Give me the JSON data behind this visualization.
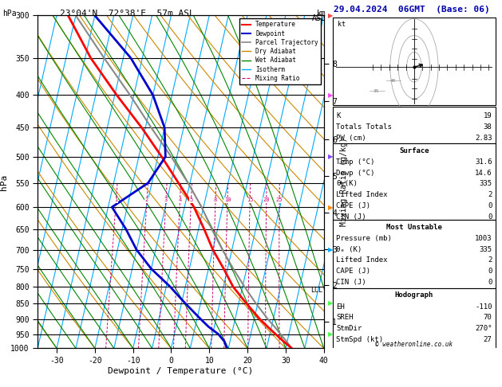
{
  "title_left": "23°04'N  72°38'E  57m ASL",
  "title_right": "29.04.2024  06GMT  (Base: 06)",
  "xlabel": "Dewpoint / Temperature (°C)",
  "ylabel_left": "hPa",
  "pressure_ticks": [
    300,
    350,
    400,
    450,
    500,
    550,
    600,
    650,
    700,
    750,
    800,
    850,
    900,
    950,
    1000
  ],
  "temp_min": -35,
  "temp_max": 40,
  "km_levels": [
    1,
    2,
    3,
    4,
    5,
    6,
    7,
    8
  ],
  "km_pressures": [
    908,
    795,
    698,
    612,
    536,
    469,
    409,
    357
  ],
  "lcl_pressure": 810,
  "temperature_profile": {
    "pressure": [
      1000,
      975,
      950,
      925,
      900,
      850,
      800,
      750,
      700,
      650,
      600,
      550,
      500,
      450,
      400,
      350,
      300
    ],
    "temp": [
      31.6,
      29.0,
      26.5,
      24.0,
      21.5,
      17.0,
      12.5,
      9.0,
      5.0,
      1.5,
      -2.5,
      -8.0,
      -14.0,
      -21.0,
      -29.5,
      -38.5,
      -47.0
    ]
  },
  "dewpoint_profile": {
    "pressure": [
      1000,
      975,
      950,
      925,
      900,
      850,
      800,
      750,
      700,
      650,
      600,
      550,
      500,
      450,
      400,
      350,
      300
    ],
    "temp": [
      14.6,
      13.5,
      11.5,
      8.5,
      6.0,
      1.0,
      -4.0,
      -10.0,
      -15.0,
      -19.0,
      -24.0,
      -16.0,
      -13.0,
      -15.0,
      -20.0,
      -28.0,
      -40.0
    ]
  },
  "parcel_trajectory": {
    "pressure": [
      1000,
      975,
      950,
      925,
      900,
      850,
      800,
      750,
      700,
      650,
      600,
      550,
      500,
      450,
      400,
      350,
      300
    ],
    "temp": [
      31.6,
      29.8,
      27.8,
      25.8,
      23.6,
      19.5,
      15.5,
      11.5,
      7.5,
      3.5,
      -0.5,
      -5.5,
      -11.5,
      -18.5,
      -26.0,
      -35.0,
      -45.0
    ]
  },
  "temp_color": "#ff0000",
  "dewpoint_color": "#0000cc",
  "parcel_color": "#888888",
  "dry_adiabat_color": "#cc8800",
  "wet_adiabat_color": "#008800",
  "isotherm_color": "#00aaff",
  "mixing_ratio_color": "#cc0077",
  "info_panel": {
    "K": 19,
    "Totals_Totals": 38,
    "PW_cm": 2.83,
    "Surface_Temp": 31.6,
    "Surface_Dewp": 14.6,
    "Surface_theta_e": 335,
    "Surface_LI": 2,
    "Surface_CAPE": 0,
    "Surface_CIN": 0,
    "MU_Pressure": 1003,
    "MU_theta_e": 335,
    "MU_LI": 2,
    "MU_CAPE": 0,
    "MU_CIN": 0,
    "Hodo_EH": -110,
    "Hodo_SREH": 70,
    "Hodo_StmDir": 270,
    "Hodo_StmSpd": 27
  }
}
